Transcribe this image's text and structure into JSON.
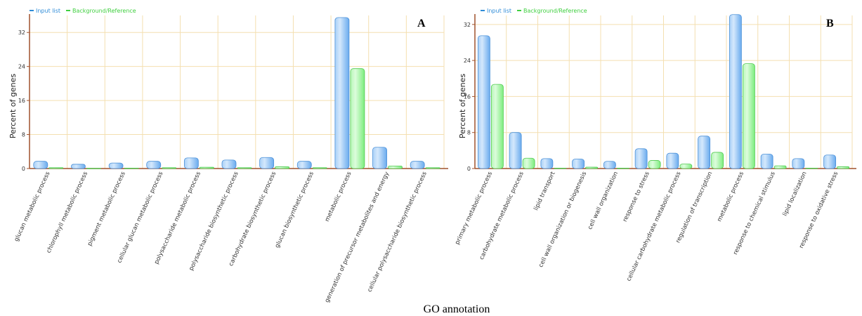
{
  "footer": {
    "xlabel": "GO annotation"
  },
  "legend": {
    "input": "Input list",
    "background": "Background/Reference"
  },
  "colors": {
    "input": "#7ab6f2",
    "input_light": "#d4e8fc",
    "input_edge": "#4a90d8",
    "background": "#8cf58c",
    "background_light": "#d6fcd6",
    "background_edge": "#4fc94f",
    "grid": "#f4dfb0",
    "axis": "#a0522d",
    "legend_input": "#2f8cd8",
    "legend_bg": "#3fcf3f"
  },
  "chart_data": [
    {
      "panel": "A",
      "type": "bar",
      "ylabel": "Percent of genes",
      "ylim": [
        0,
        36
      ],
      "yticks": [
        0,
        8,
        16,
        24,
        32
      ],
      "grid": true,
      "legend_position": "top-left",
      "categories": [
        "glucan metabolic process",
        "chlorophyll metabolic process",
        "pigment metabolic process",
        "cellular glucan metabolic process",
        "polysaccharide metabolic process",
        "polysaccharide biosynthetic process",
        "carbohydrate biosynthetic process",
        "glucan biosynthetic process",
        "metabolic process",
        "generation of precursor metabolites and energy",
        "cellular polysaccharide biosynthetic process"
      ],
      "series": [
        {
          "name": "Input list",
          "values": [
            1.7,
            1.0,
            1.3,
            1.7,
            2.5,
            2.0,
            2.6,
            1.7,
            35.5,
            5.0,
            1.7
          ]
        },
        {
          "name": "Background/Reference",
          "values": [
            0.2,
            0.05,
            0.1,
            0.2,
            0.3,
            0.2,
            0.4,
            0.2,
            23.5,
            0.6,
            0.2
          ]
        }
      ]
    },
    {
      "panel": "B",
      "type": "bar",
      "ylabel": "Percent of genes",
      "ylim": [
        0,
        34
      ],
      "yticks": [
        0,
        8,
        16,
        24,
        32
      ],
      "grid": true,
      "legend_position": "top-left",
      "categories": [
        "primary metabolic process",
        "carbohydrate metabolic process",
        "lipid transport",
        "cell wall organization or biogenesis",
        "cell wall organization",
        "response to stress",
        "cellular carbohydrate metabolic process",
        "regulation of transcription",
        "metabolic process",
        "response to chemical stimulus",
        "lipid localization",
        "response to oxidative stress"
      ],
      "series": [
        {
          "name": "Input list",
          "values": [
            29.5,
            8.0,
            2.2,
            2.1,
            1.6,
            4.4,
            3.4,
            7.2,
            34.2,
            3.2,
            2.2,
            3.0
          ]
        },
        {
          "name": "Background/Reference",
          "values": [
            18.7,
            2.3,
            0.1,
            0.3,
            0.1,
            1.8,
            1.0,
            3.6,
            23.3,
            0.6,
            0.1,
            0.4
          ]
        }
      ]
    }
  ]
}
